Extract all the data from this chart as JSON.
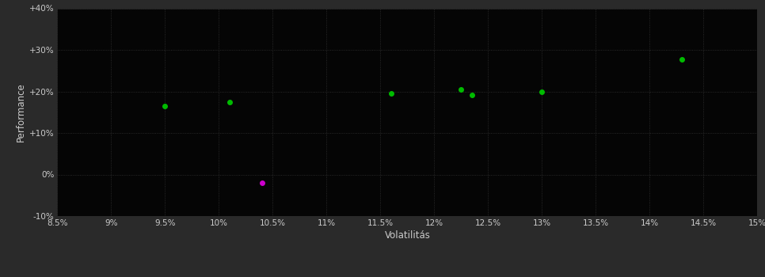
{
  "background_color": "#2a2a2a",
  "plot_bg_color": "#050505",
  "grid_color": "#333333",
  "xlabel": "Volatilitás",
  "ylabel": "Performance",
  "xlim": [
    0.085,
    0.15
  ],
  "ylim": [
    -0.1,
    0.4
  ],
  "xticks": [
    0.085,
    0.09,
    0.095,
    0.1,
    0.105,
    0.11,
    0.115,
    0.12,
    0.125,
    0.13,
    0.135,
    0.14,
    0.145,
    0.15
  ],
  "yticks": [
    -0.1,
    0.0,
    0.1,
    0.2,
    0.3,
    0.4
  ],
  "ytick_labels": [
    "-10%",
    "0%",
    "+10%",
    "+20%",
    "+30%",
    "+40%"
  ],
  "xtick_labels": [
    "8.5%",
    "9%",
    "9.5%",
    "10%",
    "10.5%",
    "11%",
    "11.5%",
    "12%",
    "12.5%",
    "13%",
    "13.5%",
    "14%",
    "14.5%",
    "15%"
  ],
  "green_points": [
    [
      0.095,
      0.165
    ],
    [
      0.101,
      0.175
    ],
    [
      0.116,
      0.196
    ],
    [
      0.1225,
      0.205
    ],
    [
      0.1235,
      0.192
    ],
    [
      0.13,
      0.2
    ],
    [
      0.143,
      0.278
    ]
  ],
  "magenta_points": [
    [
      0.104,
      -0.02
    ]
  ],
  "green_color": "#00bb00",
  "magenta_color": "#cc00cc",
  "marker_size": 4,
  "text_color": "#cccccc",
  "tick_fontsize": 7.5,
  "label_fontsize": 8.5
}
